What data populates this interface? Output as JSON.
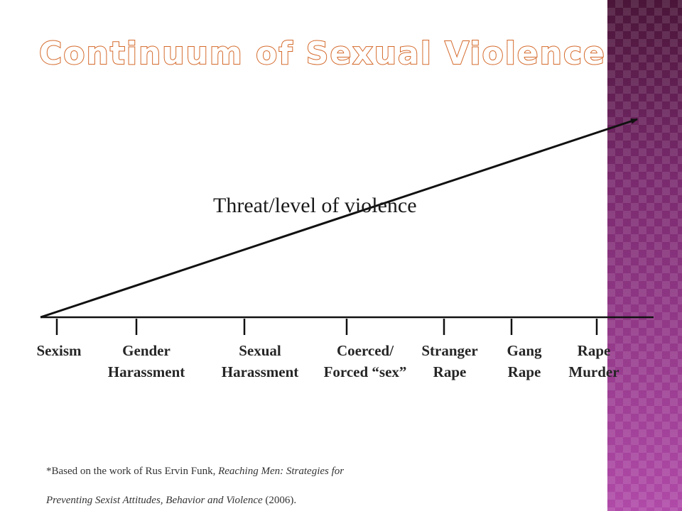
{
  "title": "Continuum of Sexual Violence",
  "arrow_label": "Threat/level of violence",
  "stages": [
    {
      "line1": "Sexism",
      "line2": ""
    },
    {
      "line1": "Gender",
      "line2": "Harassment"
    },
    {
      "line1": "Sexual",
      "line2": "Harassment"
    },
    {
      "line1": "Coerced/",
      "line2": "Forced “sex”"
    },
    {
      "line1": "Stranger",
      "line2": "Rape"
    },
    {
      "line1": "Gang",
      "line2": "Rape"
    },
    {
      "line1": "Rape",
      "line2": "Murder"
    }
  ],
  "footnote": {
    "prefix": "*Based on the work of Rus Ervin Funk, ",
    "book_title_part1": "Reaching Men:  Strategies for",
    "book_title_part2": "Preventing Sexist Attitudes, Behavior and Violence",
    "suffix": " (2006)."
  },
  "colors": {
    "title_outline": "#d4692a",
    "side_band": "#9a3a90"
  }
}
